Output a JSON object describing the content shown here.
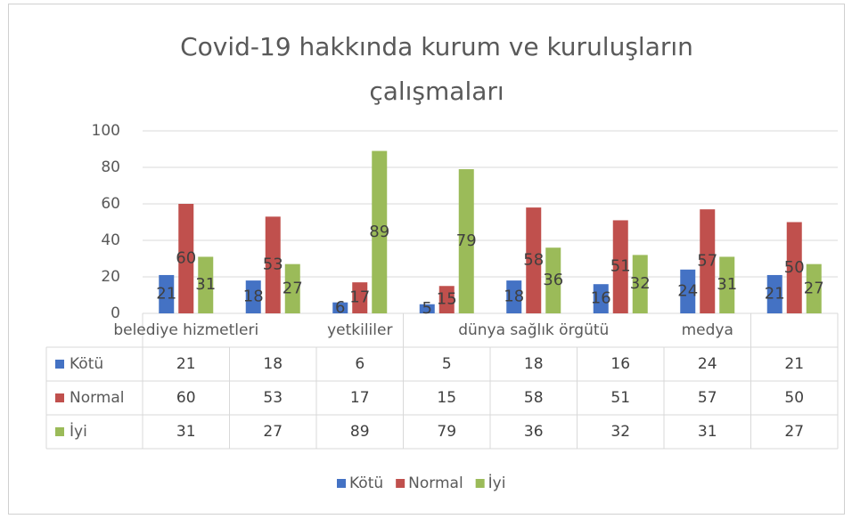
{
  "chart_data": {
    "type": "bar",
    "title": "Covid-19 hakkında kurum ve kuruluşların çalışmaları",
    "categories": [
      "belediye hizmetleri",
      null,
      "yetkililer",
      null,
      "dünya sağlık örgütü",
      null,
      "medya",
      null
    ],
    "series": [
      {
        "name": "Kötü",
        "color": "#4472c4",
        "values": [
          21,
          18,
          6,
          5,
          18,
          16,
          24,
          21
        ]
      },
      {
        "name": "Normal",
        "color": "#c0504d",
        "values": [
          60,
          53,
          17,
          15,
          58,
          51,
          57,
          50
        ]
      },
      {
        "name": "İyi",
        "color": "#9bbb59",
        "values": [
          31,
          27,
          89,
          79,
          36,
          32,
          31,
          27
        ]
      }
    ],
    "ylim": [
      0,
      100
    ],
    "yticks": [
      0,
      20,
      40,
      60,
      80,
      100
    ],
    "grid": true,
    "legend": "bottom",
    "data_table": true
  }
}
